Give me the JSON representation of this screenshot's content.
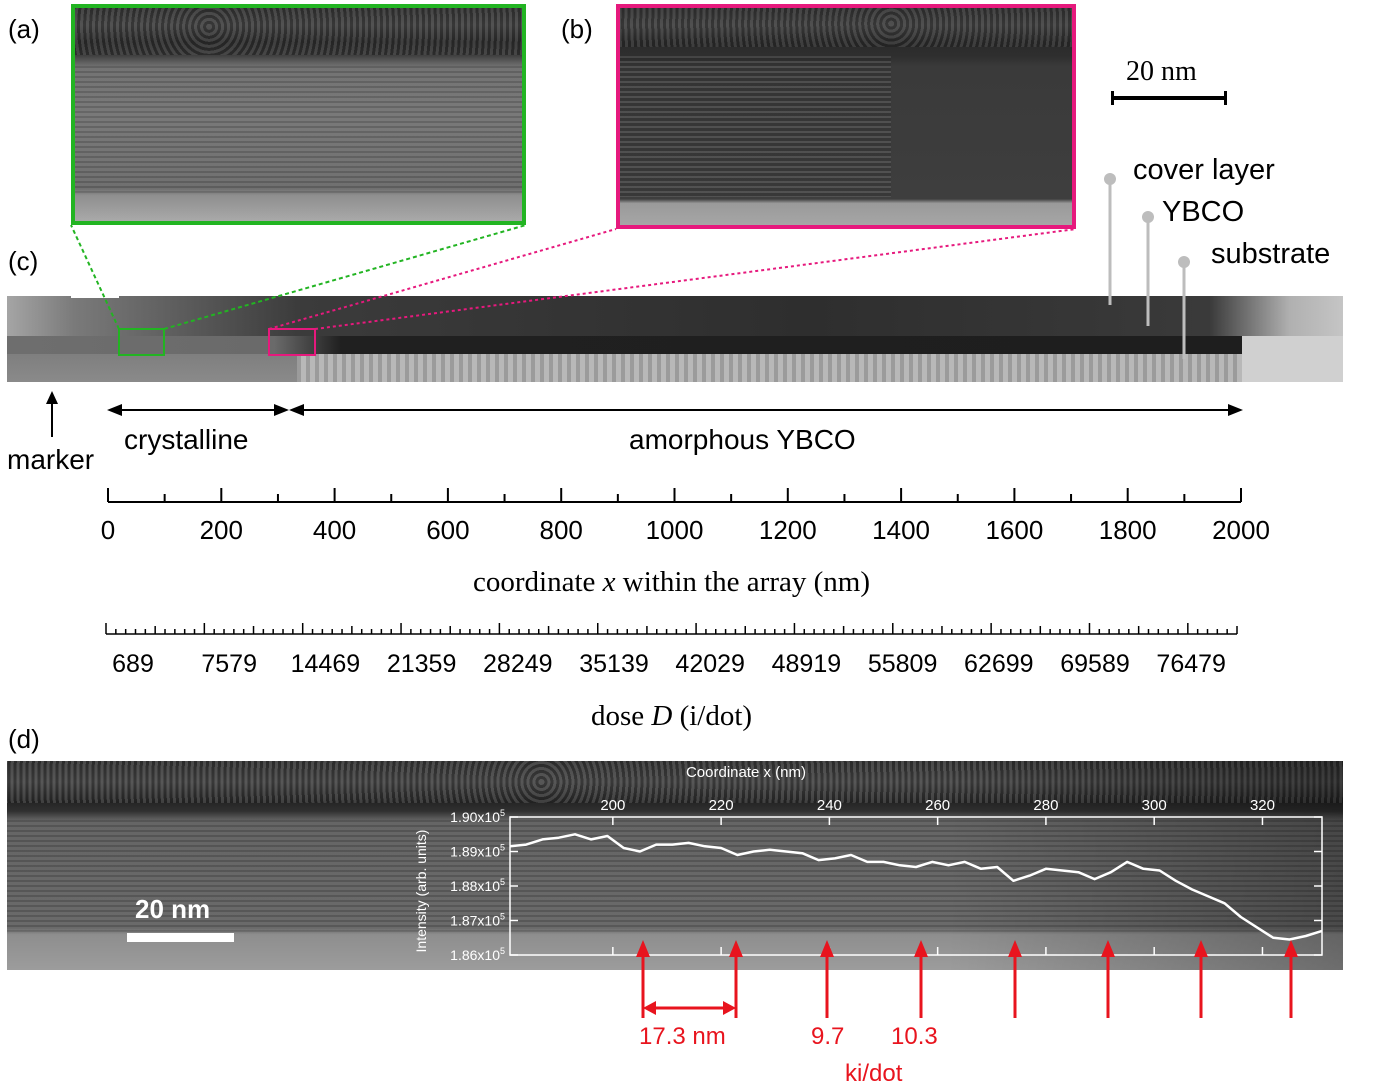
{
  "panels": {
    "a": "(a)",
    "b": "(b)",
    "c": "(c)",
    "d": "(d)"
  },
  "scalebar_top": "20 nm",
  "layers": {
    "cover": "cover layer",
    "ybco": "YBCO",
    "substrate": "substrate"
  },
  "regions": {
    "marker": "marker",
    "crystalline": "crystalline",
    "amorphous": "amorphous YBCO"
  },
  "axis_x": {
    "ticks": [
      "0",
      "200",
      "400",
      "600",
      "800",
      "1000",
      "1200",
      "1400",
      "1600",
      "1800",
      "2000"
    ],
    "label_prefix": "coordinate ",
    "label_var": "x",
    "label_suffix": " within the array (nm)"
  },
  "axis_dose": {
    "ticks": [
      "689",
      "7579",
      "14469",
      "21359",
      "28249",
      "35139",
      "42029",
      "48919",
      "55809",
      "62699",
      "69589",
      "76479"
    ],
    "label_prefix": "dose ",
    "label_var": "D",
    "label_suffix": " (i/dot)"
  },
  "scalebar_d": "20 nm",
  "annotations": {
    "spacing1": "17.3 nm",
    "spacing2": "9.7",
    "spacing3": "10.3",
    "unit": "ki/dot"
  },
  "colors": {
    "green": "#22b422",
    "magenta": "#e6197d",
    "red": "#e8141e",
    "layer_pin": "#bdbdbd"
  },
  "chart_data": {
    "type": "line",
    "title": "Coordinate x (nm)",
    "xlabel": "Coordinate x (nm)",
    "ylabel": "Intensity (arb. units)",
    "x_ticks": [
      "200",
      "220",
      "240",
      "260",
      "280",
      "300",
      "320"
    ],
    "y_ticks": [
      "1.90x10^5",
      "1.89x10^5",
      "1.88x10^5",
      "1.87x10^5",
      "1.86x10^5"
    ],
    "xlim": [
      181,
      331
    ],
    "ylim": [
      186000,
      190000
    ],
    "x": [
      181,
      184,
      187,
      190,
      193,
      196,
      199,
      202,
      205,
      208,
      211,
      214,
      217,
      220,
      223,
      226,
      229,
      232,
      235,
      238,
      241,
      244,
      247,
      250,
      253,
      256,
      259,
      262,
      265,
      268,
      271,
      274,
      277,
      280,
      283,
      286,
      289,
      292,
      295,
      298,
      301,
      304,
      307,
      310,
      313,
      316,
      319,
      322,
      325,
      328,
      331
    ],
    "y": [
      189150,
      189200,
      189350,
      189400,
      189500,
      189350,
      189450,
      189100,
      189000,
      189200,
      189200,
      189250,
      189150,
      189100,
      188900,
      189000,
      189050,
      189000,
      188950,
      188750,
      188800,
      188900,
      188700,
      188700,
      188600,
      188550,
      188700,
      188600,
      188700,
      188500,
      188550,
      188150,
      188300,
      188500,
      188450,
      188400,
      188200,
      188400,
      188700,
      188500,
      188450,
      188150,
      187900,
      187700,
      187500,
      187100,
      186800,
      186500,
      186450,
      186550,
      186700
    ]
  }
}
